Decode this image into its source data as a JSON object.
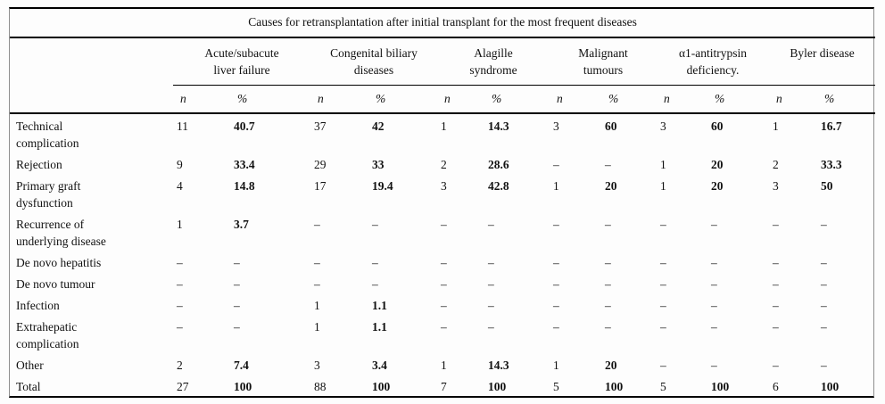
{
  "table": {
    "title": "Causes for retransplantation after initial transplant for the most frequent diseases",
    "col_groups": [
      {
        "name": "Acute/subacute liver failure",
        "label": "Acute/subacute\nliver failure"
      },
      {
        "name": "Congenital biliary diseases",
        "label": "Congenital biliary\ndiseases"
      },
      {
        "name": "Alagille syndrome",
        "label": "Alagille\nsyndrome"
      },
      {
        "name": "Malignant tumours",
        "label": "Malignant\ntumours"
      },
      {
        "name": "a1-antitrypsin deficiency",
        "label": "α1-antitrypsin\ndeficiency."
      },
      {
        "name": "Byler disease",
        "label": "Byler disease"
      }
    ],
    "subheader": {
      "n": "n",
      "pct": "%"
    },
    "rows": [
      {
        "label": "Technical\ncomplication",
        "cells": [
          "11",
          "40.7",
          "37",
          "42",
          "1",
          "14.3",
          "3",
          "60",
          "3",
          "60",
          "1",
          "16.7"
        ]
      },
      {
        "label": "Rejection",
        "cells": [
          "9",
          "33.4",
          "29",
          "33",
          "2",
          "28.6",
          "–",
          "–",
          "1",
          "20",
          "2",
          "33.3"
        ]
      },
      {
        "label": "Primary graft\ndysfunction",
        "cells": [
          "4",
          "14.8",
          "17",
          "19.4",
          "3",
          "42.8",
          "1",
          "20",
          "1",
          "20",
          "3",
          "50"
        ]
      },
      {
        "label": "Recurrence of\nunderlying disease",
        "cells": [
          "1",
          "3.7",
          "–",
          "–",
          "–",
          "–",
          "–",
          "–",
          "–",
          "–",
          "–",
          "–"
        ]
      },
      {
        "label": "De novo hepatitis",
        "cells": [
          "–",
          "–",
          "–",
          "–",
          "–",
          "–",
          "–",
          "–",
          "–",
          "–",
          "–",
          "–"
        ]
      },
      {
        "label": "De novo tumour",
        "cells": [
          "–",
          "–",
          "–",
          "–",
          "–",
          "–",
          "–",
          "–",
          "–",
          "–",
          "–",
          "–"
        ]
      },
      {
        "label": "Infection",
        "cells": [
          "–",
          "–",
          "1",
          "1.1",
          "–",
          "–",
          "–",
          "–",
          "–",
          "–",
          "–",
          "–"
        ]
      },
      {
        "label": "Extrahepatic\ncomplication",
        "cells": [
          "–",
          "–",
          "1",
          "1.1",
          "–",
          "–",
          "–",
          "–",
          "–",
          "–",
          "–",
          "–"
        ]
      },
      {
        "label": "Other",
        "cells": [
          "2",
          "7.4",
          "3",
          "3.4",
          "1",
          "14.3",
          "1",
          "20",
          "–",
          "–",
          "–",
          "–"
        ]
      },
      {
        "label": "Total",
        "cells": [
          "27",
          "100",
          "88",
          "100",
          "7",
          "100",
          "5",
          "100",
          "5",
          "100",
          "6",
          "100"
        ]
      }
    ]
  }
}
